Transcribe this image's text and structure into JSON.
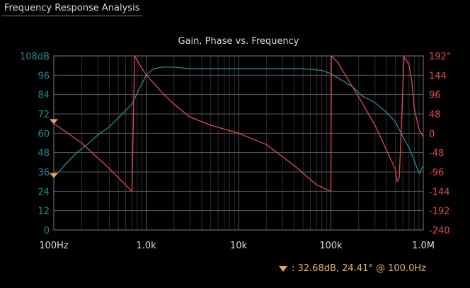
{
  "window": {
    "title": "Frequency Response Analysis"
  },
  "marker": {
    "readout": ":  32.68dB, 24.41° @ 100.0Hz",
    "color": "#e8a74a"
  },
  "colors": {
    "gain": "#1d8f95",
    "phase": "#e24a4a",
    "grid_major": "#5a5a5a",
    "grid_minor": "#2e2e2e",
    "frame": "#7a7a7a",
    "text": "#d9d9d9"
  },
  "chart_data": {
    "type": "line",
    "title": "Gain, Phase vs. Frequency",
    "x_scale": "log",
    "x_range": [
      100,
      1000000
    ],
    "x_ticks": [
      100,
      1000,
      10000,
      100000,
      1000000
    ],
    "x_tick_labels": [
      "100Hz",
      "1.0k",
      "10k",
      "100k",
      "1.0M"
    ],
    "y_left": {
      "range": [
        0,
        108
      ],
      "ticks": [
        0,
        12,
        24,
        36,
        48,
        60,
        72,
        84,
        96,
        108
      ],
      "tick_labels": [
        "0",
        "12",
        "24",
        "36",
        "48",
        "60",
        "72",
        "84",
        "96",
        "108dB"
      ]
    },
    "y_right": {
      "range": [
        -240,
        192
      ],
      "ticks": [
        -240,
        -192,
        -144,
        -96,
        -48,
        0,
        48,
        96,
        144,
        192
      ],
      "tick_labels": [
        "-240",
        "-192",
        "-144",
        "-96",
        "-48",
        "0",
        "48",
        "96",
        "144",
        "192°"
      ]
    },
    "grid": true,
    "series": [
      {
        "axis": "left",
        "color": "#1d8f95",
        "x": [
          100,
          130,
          170,
          230,
          300,
          400,
          550,
          700,
          850,
          1000,
          1200,
          1500,
          2000,
          3000,
          5000,
          10000,
          20000,
          50000,
          80000,
          100000,
          130000,
          170000,
          220000,
          300000,
          400000,
          500000,
          600000,
          700000,
          800000,
          900000,
          1000000
        ],
        "y": [
          32.68,
          40,
          47,
          53,
          59,
          64,
          72,
          78,
          88,
          96,
          100,
          101,
          101,
          100,
          100,
          100,
          100,
          100,
          99,
          97,
          93,
          89,
          83,
          79,
          73,
          67,
          58,
          51,
          43,
          35,
          40
        ]
      },
      {
        "axis": "right",
        "color": "#e24a4a",
        "x": [
          100,
          200,
          400,
          700,
          701,
          750,
          850,
          1000,
          1500,
          2000,
          3000,
          5000,
          10000,
          20000,
          40000,
          70000,
          100000,
          101000,
          120000,
          130000,
          200000,
          300000,
          500000,
          520000,
          550000,
          620000,
          700000,
          750000,
          800000,
          900000,
          1000000
        ],
        "y": [
          24.41,
          -24,
          -88,
          -144,
          -144,
          192,
          170,
          145,
          100,
          72,
          40,
          20,
          0,
          -28,
          -80,
          -128,
          -144,
          192,
          175,
          160,
          90,
          20,
          -90,
          -120,
          -110,
          190,
          170,
          130,
          60,
          10,
          -10
        ]
      }
    ],
    "markers": [
      {
        "axis": "left",
        "x": 100,
        "y": 32.68
      },
      {
        "axis": "right",
        "x": 100,
        "y": 24.41
      }
    ]
  }
}
